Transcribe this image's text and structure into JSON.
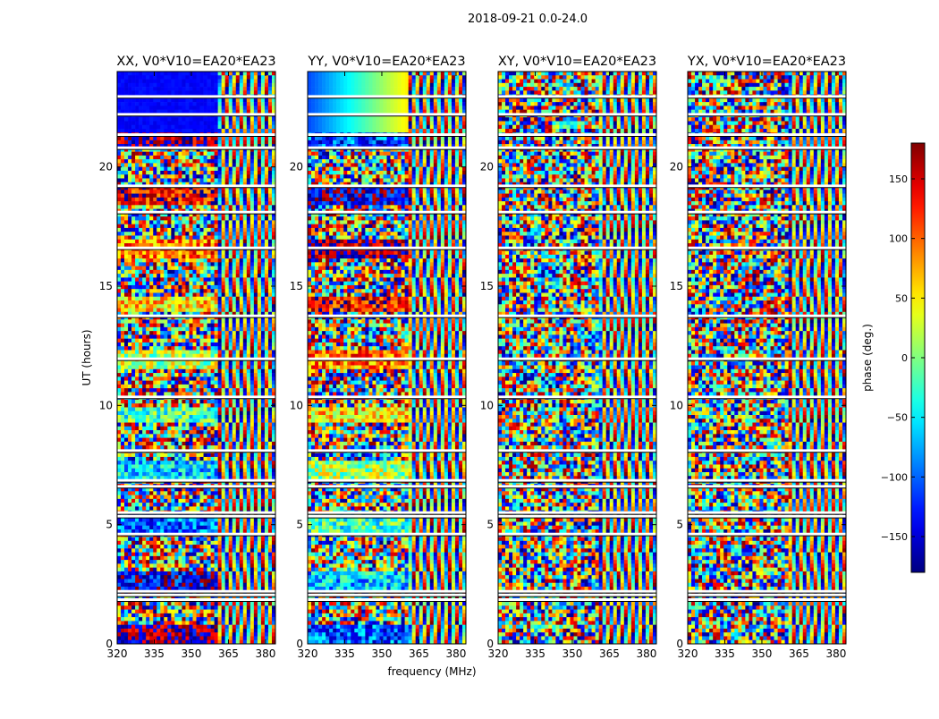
{
  "figure": {
    "suptitle": "2018-09-21 0.0-24.0"
  },
  "chart_data": {
    "type": "heatmap",
    "xlabel": "frequency (MHz)",
    "ylabel": "UT (hours)",
    "xlim": [
      320,
      384
    ],
    "ylim": [
      0,
      24
    ],
    "x_ticks": [
      "320",
      "335",
      "350",
      "365",
      "380"
    ],
    "x_tick_values": [
      320,
      335,
      350,
      365,
      380
    ],
    "y_ticks": [
      "0",
      "5",
      "10",
      "15",
      "20"
    ],
    "y_tick_values": [
      0,
      5,
      10,
      15,
      20
    ],
    "panels": [
      {
        "title": "XX, V0*V10=EA20*EA23",
        "pol": "XX"
      },
      {
        "title": "YY, V0*V10=EA20*EA23",
        "pol": "YY"
      },
      {
        "title": "XY, V0*V10=EA20*EA23",
        "pol": "XY"
      },
      {
        "title": "YX, V0*V10=EA20*EA23",
        "pol": "YX"
      }
    ],
    "colorbar": {
      "label": "phase (deg.)",
      "range": [
        -180,
        180
      ],
      "ticks": [
        "150",
        "100",
        "50",
        "0",
        "−50",
        "−100",
        "−150"
      ],
      "tick_values": [
        150,
        100,
        50,
        0,
        -50,
        -100,
        -150
      ],
      "colormap": "jet"
    },
    "data_gaps_ut_hours": [
      1.85,
      2.05,
      2.2,
      4.6,
      5.35,
      5.5,
      6.6,
      6.85,
      8.1,
      10.35,
      11.95,
      13.75,
      16.6,
      18.1,
      19.2,
      20.8,
      21.35,
      22.2,
      22.95
    ],
    "fringe_onset_mhz": 361
  }
}
